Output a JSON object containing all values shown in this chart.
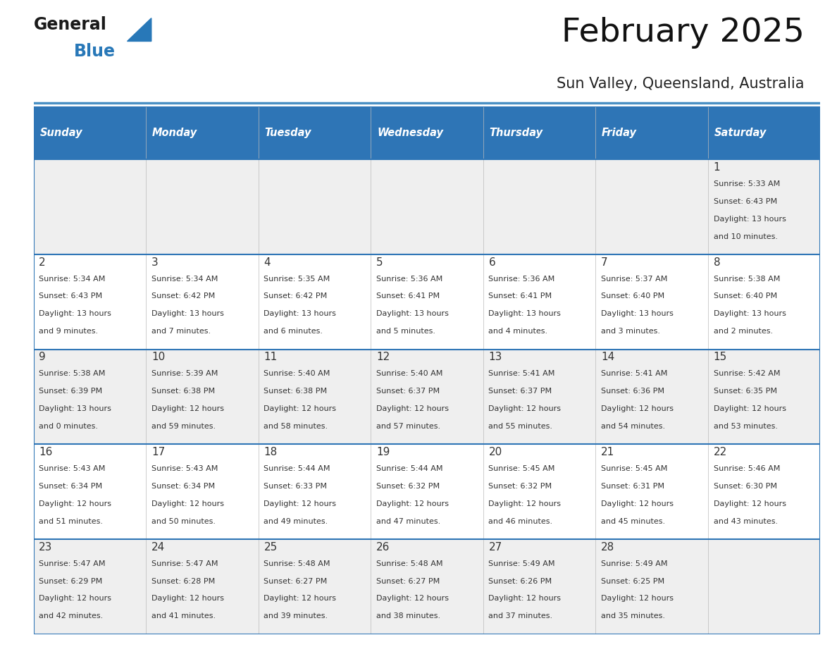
{
  "title": "February 2025",
  "subtitle": "Sun Valley, Queensland, Australia",
  "header_bg": "#2E75B6",
  "header_text_color": "#FFFFFF",
  "cell_bg_white": "#FFFFFF",
  "cell_bg_gray": "#EFEFEF",
  "day_number_color": "#333333",
  "info_text_color": "#333333",
  "border_color": "#2E75B6",
  "separator_color": "#4A90C4",
  "days_of_week": [
    "Sunday",
    "Monday",
    "Tuesday",
    "Wednesday",
    "Thursday",
    "Friday",
    "Saturday"
  ],
  "calendar_data": [
    [
      null,
      null,
      null,
      null,
      null,
      null,
      {
        "day": "1",
        "sunrise": "5:33 AM",
        "sunset": "6:43 PM",
        "daylight_h": "13 hours",
        "daylight_m": "and 10 minutes."
      }
    ],
    [
      {
        "day": "2",
        "sunrise": "5:34 AM",
        "sunset": "6:43 PM",
        "daylight_h": "13 hours",
        "daylight_m": "and 9 minutes."
      },
      {
        "day": "3",
        "sunrise": "5:34 AM",
        "sunset": "6:42 PM",
        "daylight_h": "13 hours",
        "daylight_m": "and 7 minutes."
      },
      {
        "day": "4",
        "sunrise": "5:35 AM",
        "sunset": "6:42 PM",
        "daylight_h": "13 hours",
        "daylight_m": "and 6 minutes."
      },
      {
        "day": "5",
        "sunrise": "5:36 AM",
        "sunset": "6:41 PM",
        "daylight_h": "13 hours",
        "daylight_m": "and 5 minutes."
      },
      {
        "day": "6",
        "sunrise": "5:36 AM",
        "sunset": "6:41 PM",
        "daylight_h": "13 hours",
        "daylight_m": "and 4 minutes."
      },
      {
        "day": "7",
        "sunrise": "5:37 AM",
        "sunset": "6:40 PM",
        "daylight_h": "13 hours",
        "daylight_m": "and 3 minutes."
      },
      {
        "day": "8",
        "sunrise": "5:38 AM",
        "sunset": "6:40 PM",
        "daylight_h": "13 hours",
        "daylight_m": "and 2 minutes."
      }
    ],
    [
      {
        "day": "9",
        "sunrise": "5:38 AM",
        "sunset": "6:39 PM",
        "daylight_h": "13 hours",
        "daylight_m": "and 0 minutes."
      },
      {
        "day": "10",
        "sunrise": "5:39 AM",
        "sunset": "6:38 PM",
        "daylight_h": "12 hours",
        "daylight_m": "and 59 minutes."
      },
      {
        "day": "11",
        "sunrise": "5:40 AM",
        "sunset": "6:38 PM",
        "daylight_h": "12 hours",
        "daylight_m": "and 58 minutes."
      },
      {
        "day": "12",
        "sunrise": "5:40 AM",
        "sunset": "6:37 PM",
        "daylight_h": "12 hours",
        "daylight_m": "and 57 minutes."
      },
      {
        "day": "13",
        "sunrise": "5:41 AM",
        "sunset": "6:37 PM",
        "daylight_h": "12 hours",
        "daylight_m": "and 55 minutes."
      },
      {
        "day": "14",
        "sunrise": "5:41 AM",
        "sunset": "6:36 PM",
        "daylight_h": "12 hours",
        "daylight_m": "and 54 minutes."
      },
      {
        "day": "15",
        "sunrise": "5:42 AM",
        "sunset": "6:35 PM",
        "daylight_h": "12 hours",
        "daylight_m": "and 53 minutes."
      }
    ],
    [
      {
        "day": "16",
        "sunrise": "5:43 AM",
        "sunset": "6:34 PM",
        "daylight_h": "12 hours",
        "daylight_m": "and 51 minutes."
      },
      {
        "day": "17",
        "sunrise": "5:43 AM",
        "sunset": "6:34 PM",
        "daylight_h": "12 hours",
        "daylight_m": "and 50 minutes."
      },
      {
        "day": "18",
        "sunrise": "5:44 AM",
        "sunset": "6:33 PM",
        "daylight_h": "12 hours",
        "daylight_m": "and 49 minutes."
      },
      {
        "day": "19",
        "sunrise": "5:44 AM",
        "sunset": "6:32 PM",
        "daylight_h": "12 hours",
        "daylight_m": "and 47 minutes."
      },
      {
        "day": "20",
        "sunrise": "5:45 AM",
        "sunset": "6:32 PM",
        "daylight_h": "12 hours",
        "daylight_m": "and 46 minutes."
      },
      {
        "day": "21",
        "sunrise": "5:45 AM",
        "sunset": "6:31 PM",
        "daylight_h": "12 hours",
        "daylight_m": "and 45 minutes."
      },
      {
        "day": "22",
        "sunrise": "5:46 AM",
        "sunset": "6:30 PM",
        "daylight_h": "12 hours",
        "daylight_m": "and 43 minutes."
      }
    ],
    [
      {
        "day": "23",
        "sunrise": "5:47 AM",
        "sunset": "6:29 PM",
        "daylight_h": "12 hours",
        "daylight_m": "and 42 minutes."
      },
      {
        "day": "24",
        "sunrise": "5:47 AM",
        "sunset": "6:28 PM",
        "daylight_h": "12 hours",
        "daylight_m": "and 41 minutes."
      },
      {
        "day": "25",
        "sunrise": "5:48 AM",
        "sunset": "6:27 PM",
        "daylight_h": "12 hours",
        "daylight_m": "and 39 minutes."
      },
      {
        "day": "26",
        "sunrise": "5:48 AM",
        "sunset": "6:27 PM",
        "daylight_h": "12 hours",
        "daylight_m": "and 38 minutes."
      },
      {
        "day": "27",
        "sunrise": "5:49 AM",
        "sunset": "6:26 PM",
        "daylight_h": "12 hours",
        "daylight_m": "and 37 minutes."
      },
      {
        "day": "28",
        "sunrise": "5:49 AM",
        "sunset": "6:25 PM",
        "daylight_h": "12 hours",
        "daylight_m": "and 35 minutes."
      },
      null
    ]
  ],
  "logo_general_color": "#1a1a1a",
  "logo_blue_color": "#2878B8"
}
